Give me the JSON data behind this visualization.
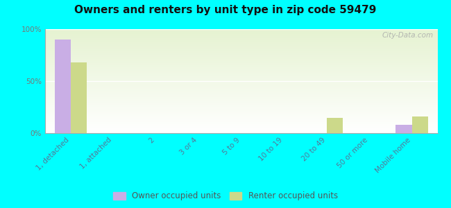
{
  "title": "Owners and renters by unit type in zip code 59479",
  "categories": [
    "1, detached",
    "1, attached",
    "2",
    "3 or 4",
    "5 to 9",
    "10 to 19",
    "20 to 49",
    "50 or more",
    "Mobile home"
  ],
  "owner_values": [
    90,
    0,
    0,
    0,
    0,
    0,
    0,
    0,
    8
  ],
  "renter_values": [
    68,
    0,
    0,
    0,
    0,
    0,
    15,
    0,
    16
  ],
  "owner_color": "#c9aee5",
  "renter_color": "#ccd98a",
  "background_color": "#00ffff",
  "ylim": [
    0,
    100
  ],
  "yticks": [
    0,
    50,
    100
  ],
  "yticklabels": [
    "0%",
    "50%",
    "100%"
  ],
  "bar_width": 0.38,
  "legend_owner": "Owner occupied units",
  "legend_renter": "Renter occupied units",
  "watermark": "City-Data.com",
  "title_fontsize": 11,
  "tick_fontsize": 7.5,
  "legend_fontsize": 8.5,
  "label_color": "#557799",
  "ytick_color": "#777777"
}
